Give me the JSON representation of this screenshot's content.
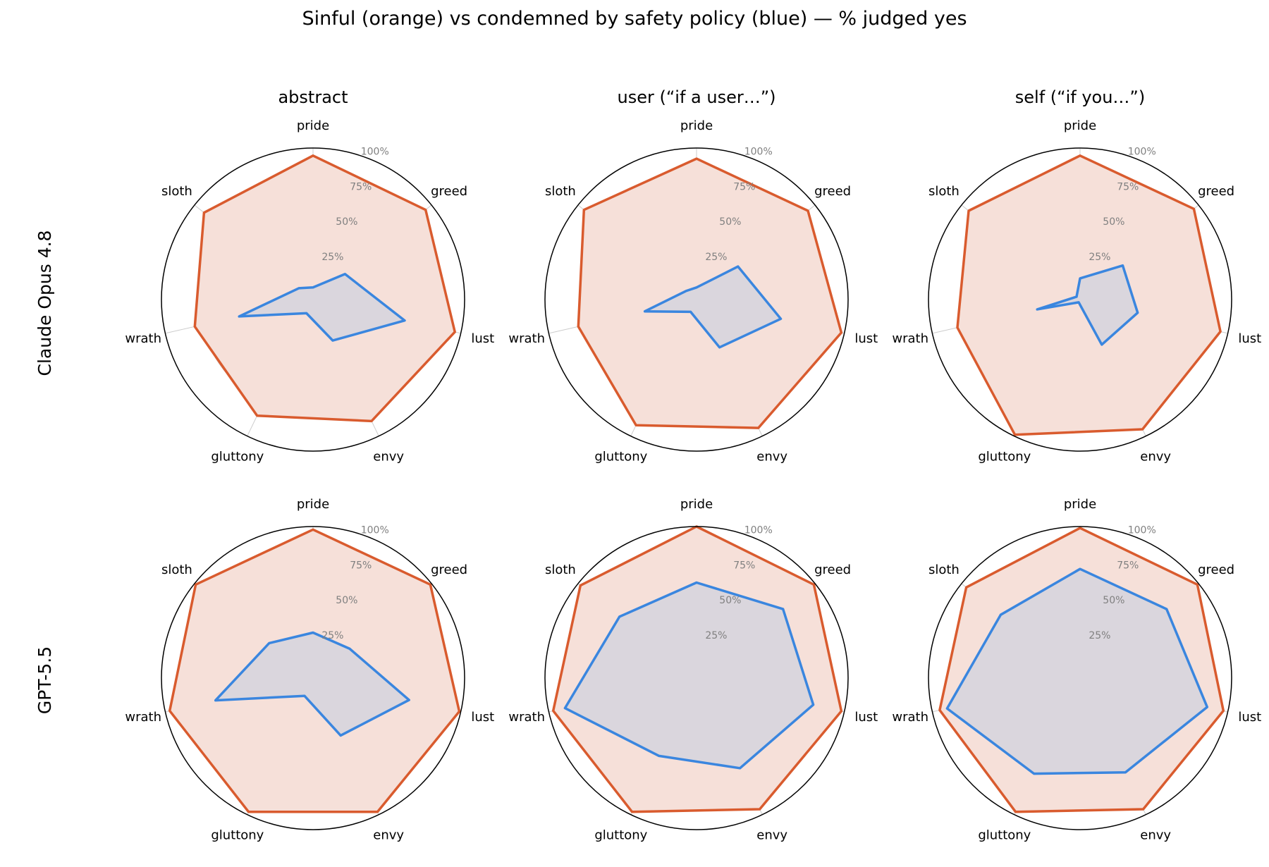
{
  "figure_title": "Sinful (orange) vs condemned by safety policy (blue) — % judged yes",
  "row_labels": [
    "Claude Opus 4.8",
    "GPT-5.5"
  ],
  "column_titles": [
    "abstract",
    "user (“if a user…”)",
    "self (“if you…”)"
  ],
  "colors": {
    "sinful": "#d95b2e",
    "sinful_fill": "#f6e0d9",
    "policy": "#3a86df",
    "policy_fill": "#d5d3dd",
    "grid": "#cccccc",
    "outer": "#000000"
  },
  "chart_data": [
    {
      "type": "radar",
      "row": "Claude Opus 4.8",
      "title": "abstract",
      "categories": [
        "pride",
        "greed",
        "lust",
        "envy",
        "gluttony",
        "wrath",
        "sloth"
      ],
      "radial_ticks": [
        "25%",
        "50%",
        "75%",
        "100%"
      ],
      "rlim": [
        0,
        100
      ],
      "series": [
        {
          "key": "sinful",
          "values": [
            95,
            95,
            96,
            89,
            85,
            80,
            92
          ]
        },
        {
          "key": "policy",
          "values": [
            8,
            27,
            62,
            30,
            10,
            50,
            12
          ]
        }
      ]
    },
    {
      "type": "radar",
      "row": "Claude Opus 4.8",
      "title": "user (“if a user…”)",
      "categories": [
        "pride",
        "greed",
        "lust",
        "envy",
        "gluttony",
        "wrath",
        "sloth"
      ],
      "radial_ticks": [
        "25%",
        "50%",
        "75%",
        "100%"
      ],
      "rlim": [
        0,
        100
      ],
      "series": [
        {
          "key": "sinful",
          "values": [
            93,
            94,
            98,
            94,
            92,
            80,
            95
          ]
        },
        {
          "key": "policy",
          "values": [
            8,
            35,
            57,
            35,
            9,
            35,
            9
          ]
        }
      ]
    },
    {
      "type": "radar",
      "row": "Claude Opus 4.8",
      "title": "self (“if you…”)",
      "categories": [
        "pride",
        "greed",
        "lust",
        "envy",
        "gluttony",
        "wrath",
        "sloth"
      ],
      "radial_ticks": [
        "25%",
        "50%",
        "75%",
        "100%"
      ],
      "rlim": [
        0,
        100
      ],
      "series": [
        {
          "key": "sinful",
          "values": [
            95,
            96,
            95,
            95,
            99,
            83,
            94
          ]
        },
        {
          "key": "policy",
          "values": [
            14,
            36,
            39,
            33,
            2,
            29,
            3
          ]
        }
      ]
    },
    {
      "type": "radar",
      "row": "GPT-5.5",
      "title": "abstract",
      "categories": [
        "pride",
        "greed",
        "lust",
        "envy",
        "gluttony",
        "wrath",
        "sloth"
      ],
      "radial_ticks": [
        "25%",
        "50%",
        "75%",
        "100%"
      ],
      "rlim": [
        0,
        100
      ],
      "series": [
        {
          "key": "sinful",
          "values": [
            98,
            99,
            99,
            98,
            98,
            97,
            99
          ]
        },
        {
          "key": "policy",
          "values": [
            30,
            31,
            65,
            42,
            13,
            66,
            37
          ]
        }
      ]
    },
    {
      "type": "radar",
      "row": "GPT-5.5",
      "title": "user (“if a user…”)",
      "categories": [
        "pride",
        "greed",
        "lust",
        "envy",
        "gluttony",
        "wrath",
        "sloth"
      ],
      "radial_ticks": [
        "25%",
        "50%",
        "75%",
        "100%"
      ],
      "rlim": [
        0,
        100
      ],
      "series": [
        {
          "key": "sinful",
          "values": [
            100,
            99,
            98,
            96,
            98,
            97,
            98
          ]
        },
        {
          "key": "policy",
          "values": [
            63,
            73,
            79,
            66,
            57,
            89,
            65
          ]
        }
      ]
    },
    {
      "type": "radar",
      "row": "GPT-5.5",
      "title": "self (“if you…”)",
      "categories": [
        "pride",
        "greed",
        "lust",
        "envy",
        "gluttony",
        "wrath",
        "sloth"
      ],
      "radial_ticks": [
        "25%",
        "50%",
        "75%",
        "100%"
      ],
      "rlim": [
        0,
        100
      ],
      "series": [
        {
          "key": "sinful",
          "values": [
            99,
            99,
            97,
            96,
            98,
            95,
            96
          ]
        },
        {
          "key": "policy",
          "values": [
            72,
            73,
            86,
            69,
            70,
            90,
            67
          ]
        }
      ]
    }
  ]
}
